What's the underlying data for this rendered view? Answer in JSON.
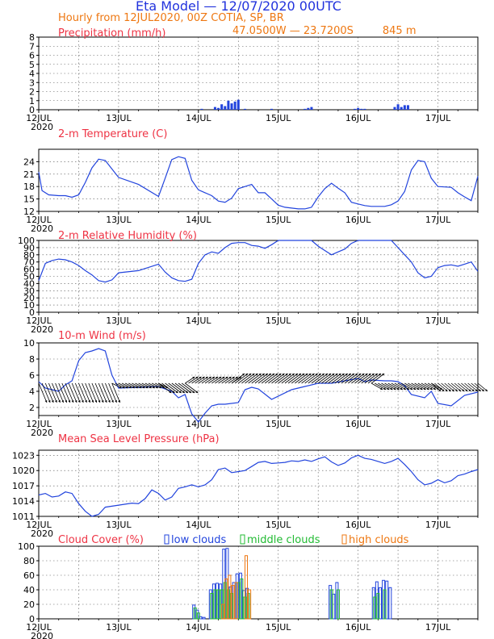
{
  "header": {
    "title": "Eta Model — 12/07/2020 00UTC",
    "subtitle": "Hourly from 12JUL2020, 00Z  COTIA, SP, BR",
    "location": "47.0500W — 23.7200S",
    "elevation": "845  m",
    "title_color": "#2233dd",
    "subtitle_color": "#ee7711"
  },
  "colors": {
    "series": "#2244dd",
    "panel_title": "#ee3344",
    "cloud_low": "#2244dd",
    "cloud_middle": "#22bb33",
    "cloud_high": "#ee7711",
    "wind_barb": "#000000"
  },
  "x_axis": {
    "ticks": [
      "12JUL",
      "13JUL",
      "14JUL",
      "15JUL",
      "16JUL",
      "17JUL"
    ],
    "year_label": "2020",
    "range_hours": [
      0,
      132
    ]
  },
  "chart_data": [
    {
      "type": "bar",
      "title": "Precipitation (mm/h)",
      "ylim": [
        0,
        8
      ],
      "yticks": [
        0,
        1,
        2,
        3,
        4,
        5,
        6,
        7,
        8
      ],
      "grid": true,
      "series": [
        {
          "x": [
            49,
            53,
            54,
            55,
            56,
            57,
            58,
            59,
            60,
            62,
            70,
            80,
            81,
            82,
            95,
            96,
            97,
            98,
            107,
            108,
            109,
            110,
            111
          ],
          "values": [
            0.1,
            0.3,
            0.2,
            0.6,
            0.4,
            1.0,
            0.7,
            0.9,
            1.1,
            0.1,
            0.1,
            0.1,
            0.2,
            0.3,
            0.1,
            0.2,
            0.1,
            0.1,
            0.3,
            0.6,
            0.3,
            0.5,
            0.5
          ]
        }
      ]
    },
    {
      "type": "line",
      "title": "2-m Temperature (C)",
      "ylim": [
        12,
        27
      ],
      "yticks": [
        12,
        15,
        18,
        21,
        24
      ],
      "grid": true,
      "series": [
        {
          "x": [
            0,
            1,
            3,
            6,
            8,
            10,
            12,
            14,
            16,
            18,
            20,
            24,
            30,
            36,
            38,
            40,
            42,
            44,
            46,
            48,
            50,
            52,
            54,
            56,
            58,
            60,
            62,
            64,
            66,
            68,
            70,
            72,
            74,
            78,
            80,
            82,
            84,
            86,
            88,
            90,
            92,
            94,
            96,
            98,
            100,
            104,
            106,
            108,
            110,
            112,
            114,
            116,
            118,
            120,
            122,
            124,
            126,
            128,
            130,
            132
          ],
          "values": [
            21.5,
            17,
            16,
            15.8,
            15.8,
            15.4,
            16,
            19,
            22.5,
            24.6,
            24.3,
            20.2,
            18.5,
            15.6,
            20,
            24.5,
            25.2,
            24.8,
            19.5,
            17.2,
            16.5,
            15.8,
            14.5,
            14.2,
            15.2,
            17.5,
            18,
            18.5,
            16.5,
            16.5,
            15,
            13.5,
            13,
            12.6,
            12.6,
            13,
            15.5,
            17.5,
            18.8,
            17.6,
            16.5,
            14.2,
            13.8,
            13.4,
            13.2,
            13.2,
            13.6,
            14.5,
            16.8,
            22,
            24.3,
            24,
            20,
            18,
            17.9,
            17.8,
            16.5,
            15.5,
            14.6,
            20.5
          ]
        }
      ]
    },
    {
      "type": "line",
      "title": "2-m Relative Humidity (%)",
      "ylim": [
        0,
        100
      ],
      "yticks": [
        0,
        10,
        20,
        30,
        40,
        50,
        60,
        70,
        80,
        90,
        100
      ],
      "grid": true,
      "series": [
        {
          "x": [
            0,
            2,
            4,
            6,
            8,
            10,
            12,
            14,
            16,
            18,
            20,
            22,
            24,
            30,
            36,
            38,
            40,
            42,
            44,
            46,
            48,
            50,
            52,
            54,
            56,
            58,
            60,
            62,
            64,
            66,
            68,
            70,
            72,
            74,
            76,
            78,
            80,
            82,
            84,
            86,
            88,
            90,
            92,
            94,
            96,
            98,
            100,
            102,
            104,
            106,
            108,
            110,
            112,
            114,
            116,
            118,
            120,
            122,
            124,
            126,
            128,
            130,
            132
          ],
          "values": [
            44,
            68,
            72,
            74,
            73,
            70,
            65,
            58,
            52,
            44,
            42,
            45,
            55,
            58,
            67,
            56,
            48,
            44,
            43,
            46,
            68,
            80,
            84,
            82,
            90,
            96,
            97,
            97,
            93,
            92,
            89,
            94,
            100,
            100,
            100,
            100,
            100,
            100,
            92,
            86,
            80,
            84,
            88,
            96,
            100,
            100,
            100,
            100,
            100,
            100,
            90,
            80,
            70,
            55,
            48,
            50,
            62,
            65,
            66,
            64,
            67,
            70,
            57
          ]
        }
      ]
    },
    {
      "type": "line",
      "title": "10-m Wind (m/s)",
      "ylim": [
        1,
        10
      ],
      "yticks": [
        2,
        4,
        6,
        8,
        10
      ],
      "grid": true,
      "series": [
        {
          "x": [
            0,
            2,
            4,
            6,
            8,
            10,
            12,
            14,
            16,
            18,
            20,
            22,
            24,
            30,
            36,
            40,
            42,
            44,
            46,
            48,
            50,
            52,
            54,
            56,
            60,
            62,
            64,
            66,
            70,
            76,
            80,
            84,
            88,
            92,
            96,
            98,
            100,
            104,
            106,
            108,
            110,
            112,
            116,
            118,
            120,
            124,
            128,
            132
          ],
          "values": [
            5.2,
            4.4,
            4.2,
            4.0,
            4.8,
            5.3,
            7.8,
            8.8,
            9.0,
            9.3,
            9.0,
            6.0,
            4.4,
            4.5,
            4.6,
            4.0,
            3.2,
            3.6,
            1.2,
            0.2,
            1.3,
            2.2,
            2.4,
            2.4,
            2.6,
            4.2,
            4.5,
            4.3,
            3.0,
            4.2,
            4.6,
            5.0,
            5.0,
            5.3,
            5.6,
            5.2,
            5.4,
            5.3,
            5.3,
            5.2,
            4.7,
            3.6,
            3.2,
            4.0,
            2.5,
            2.2,
            3.5,
            3.9
          ]
        }
      ],
      "wind_barbs": [
        {
          "from": [
            0,
            22
          ],
          "dx": 10,
          "dy": 24
        },
        {
          "from": [
            22,
            36
          ],
          "dx": 12,
          "dy": 6
        },
        {
          "from": [
            36,
            44
          ],
          "dx": 16,
          "dy": 12
        },
        {
          "from": [
            44,
            58
          ],
          "dx": 12,
          "dy": -8
        },
        {
          "from": [
            58,
            100
          ],
          "dx": 16,
          "dy": -12
        },
        {
          "from": [
            100,
            118
          ],
          "dx": 14,
          "dy": 8
        },
        {
          "from": [
            118,
            132
          ],
          "dx": 12,
          "dy": 10
        }
      ]
    },
    {
      "type": "line",
      "title": "Mean Sea Level Pressure (hPa)",
      "ylim": [
        1011,
        1024
      ],
      "yticks": [
        1011,
        1014,
        1017,
        1020,
        1023
      ],
      "grid": true,
      "series": [
        {
          "x": [
            0,
            2,
            4,
            6,
            8,
            10,
            12,
            14,
            16,
            18,
            20,
            24,
            28,
            30,
            32,
            34,
            36,
            38,
            40,
            42,
            44,
            46,
            48,
            50,
            52,
            54,
            56,
            58,
            60,
            62,
            64,
            66,
            68,
            70,
            72,
            74,
            76,
            78,
            80,
            82,
            84,
            86,
            88,
            90,
            92,
            94,
            96,
            98,
            100,
            102,
            104,
            106,
            108,
            110,
            112,
            114,
            116,
            118,
            120,
            122,
            124,
            126,
            128,
            130,
            132
          ],
          "values": [
            1015.2,
            1015.5,
            1014.8,
            1015.0,
            1015.8,
            1015.5,
            1013.5,
            1012,
            1011.0,
            1011.4,
            1012.8,
            1013.2,
            1013.6,
            1013.5,
            1014.5,
            1016.2,
            1015.5,
            1014.2,
            1014.8,
            1016.5,
            1016.8,
            1017.2,
            1016.8,
            1017.2,
            1018.2,
            1020.2,
            1020.5,
            1019.6,
            1019.8,
            1020.0,
            1020.8,
            1021.6,
            1021.8,
            1021.4,
            1021.5,
            1021.6,
            1021.9,
            1021.8,
            1022.1,
            1021.8,
            1022.3,
            1022.7,
            1021.7,
            1021.0,
            1021.5,
            1022.5,
            1023.0,
            1022.4,
            1022.2,
            1021.8,
            1021.4,
            1021.8,
            1022.4,
            1021.2,
            1019.8,
            1018.2,
            1017.2,
            1017.5,
            1018.2,
            1017.6,
            1018.0,
            1019.0,
            1019.3,
            1019.8,
            1020.2
          ]
        }
      ]
    },
    {
      "type": "bar",
      "title": "Cloud Cover (%)",
      "ylim": [
        0,
        100
      ],
      "yticks": [
        0,
        20,
        40,
        60,
        80,
        100
      ],
      "grid": true,
      "series": [
        {
          "name": "low clouds",
          "x": [
            47,
            48,
            49,
            50,
            52,
            53,
            54,
            55,
            56,
            57,
            58,
            59,
            60,
            61,
            62,
            63,
            88,
            89,
            90,
            101,
            102,
            103,
            104,
            105,
            106
          ],
          "values": [
            19,
            12,
            3,
            2,
            40,
            48,
            49,
            48,
            96,
            97,
            44,
            50,
            62,
            63,
            39,
            42,
            46,
            34,
            50,
            43,
            51,
            43,
            53,
            52,
            43
          ]
        },
        {
          "name": "middle clouds",
          "x": [
            47,
            48,
            52,
            53,
            54,
            55,
            56,
            57,
            58,
            60,
            61,
            62,
            63,
            88,
            90,
            101,
            102,
            104
          ],
          "values": [
            15,
            8,
            35,
            40,
            40,
            40,
            50,
            40,
            35,
            50,
            55,
            30,
            35,
            40,
            40,
            30,
            35,
            40
          ]
        },
        {
          "name": "high clouds",
          "x": [
            55,
            56,
            57,
            58,
            59,
            62,
            63
          ],
          "values": [
            20,
            55,
            60,
            46,
            50,
            87,
            40
          ]
        }
      ]
    }
  ]
}
